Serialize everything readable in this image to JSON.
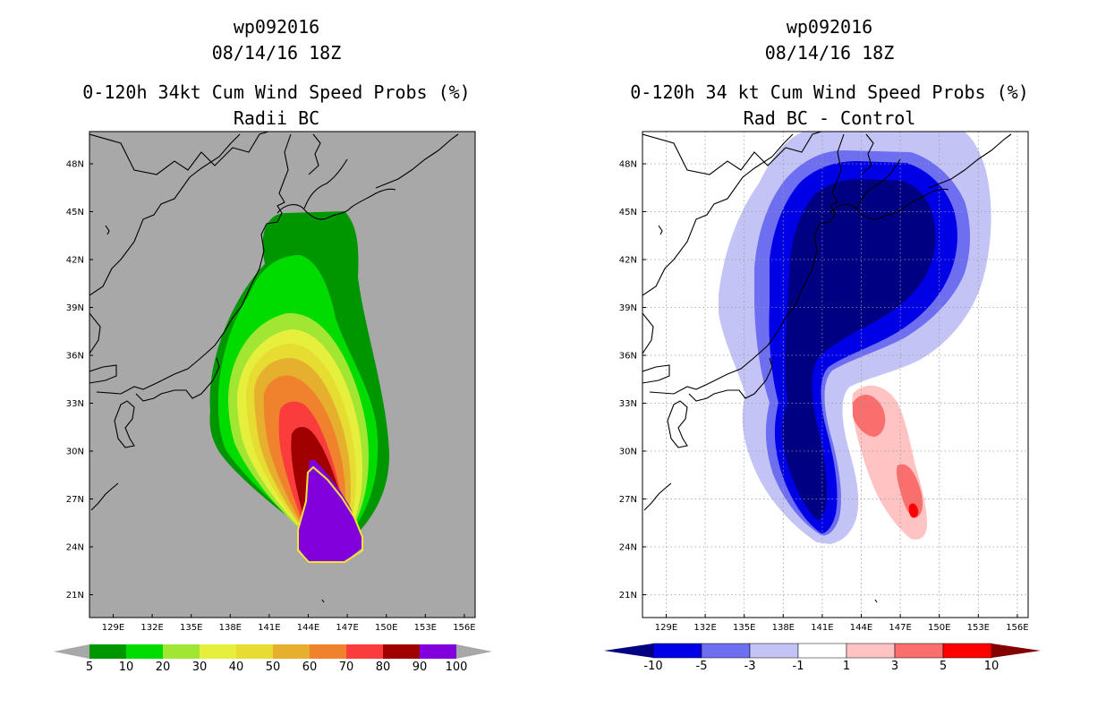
{
  "chart_data": [
    {
      "type": "heatmap",
      "title_lines": [
        "wp092016",
        "08/14/16 18Z",
        "0-120h 34kt Cum Wind Speed Probs (%)",
        "Radii BC"
      ],
      "xlabel": "",
      "ylabel": "",
      "x_range_lon": [
        127,
        157
      ],
      "y_range_lat": [
        19.5,
        49.5
      ],
      "x_ticks": [
        "129E",
        "132E",
        "135E",
        "138E",
        "141E",
        "144E",
        "147E",
        "150E",
        "153E",
        "156E"
      ],
      "y_ticks": [
        "48N",
        "45N",
        "42N",
        "39N",
        "36N",
        "33N",
        "30N",
        "27N",
        "24N",
        "21N"
      ],
      "grid": false,
      "background_color": "#a8a8a8",
      "colorbar": {
        "labels": [
          "5",
          "10",
          "20",
          "30",
          "40",
          "50",
          "60",
          "70",
          "80",
          "90",
          "100"
        ],
        "colors": [
          "#009600",
          "#00dc00",
          "#a0e632",
          "#e6f03c",
          "#e6dc32",
          "#e6af2d",
          "#f0822d",
          "#fa3c3c",
          "#a00000",
          "#8200dc"
        ],
        "end_arrows": "gray"
      }
    },
    {
      "type": "heatmap",
      "title_lines": [
        "wp092016",
        "08/14/16 18Z",
        "0-120h 34 kt Cum Wind Speed Probs (%)",
        "Rad BC - Control"
      ],
      "xlabel": "",
      "ylabel": "",
      "x_range_lon": [
        127,
        157
      ],
      "y_range_lat": [
        19.5,
        49.5
      ],
      "x_ticks": [
        "129E",
        "132E",
        "135E",
        "138E",
        "141E",
        "144E",
        "147E",
        "150E",
        "153E",
        "156E"
      ],
      "y_ticks": [
        "48N",
        "45N",
        "42N",
        "39N",
        "36N",
        "33N",
        "30N",
        "27N",
        "24N",
        "21N"
      ],
      "grid": true,
      "background_color": "#ffffff",
      "colorbar": {
        "labels": [
          "-10",
          "-5",
          "-3",
          "-1",
          "1",
          "3",
          "5",
          "10"
        ],
        "colors": [
          "#0000e6",
          "#6e6ef0",
          "#c3c3f5",
          "#ffffff",
          "#ffc3c3",
          "#fa6e6e",
          "#ff0000"
        ],
        "low_arrow_color": "#000082",
        "high_arrow_color": "#820000"
      }
    }
  ]
}
